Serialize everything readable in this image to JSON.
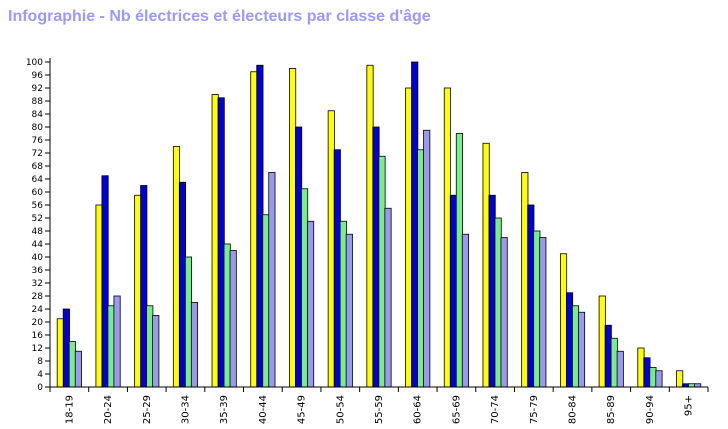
{
  "title": "Infographie - Nb électrices et électeurs par classe d'âge",
  "colors": {
    "background": "#ffffff",
    "title": "#9999ff",
    "axis": "#000000",
    "series": [
      "#ffff00",
      "#0000dd",
      "#77ee88",
      "#9999ee"
    ]
  },
  "chart_data": {
    "type": "bar",
    "title": "Infographie - Nb électrices et électeurs par classe d'âge",
    "xlabel": "",
    "ylabel": "",
    "ylim": [
      0,
      100
    ],
    "y_ticks": [
      0,
      4,
      8,
      12,
      16,
      20,
      24,
      28,
      32,
      36,
      40,
      44,
      48,
      52,
      56,
      60,
      64,
      68,
      72,
      76,
      80,
      84,
      88,
      92,
      96,
      100
    ],
    "grid": false,
    "legend": "none",
    "categories": [
      "18-19",
      "20-24",
      "25-29",
      "30-34",
      "35-39",
      "40-44",
      "45-49",
      "50-54",
      "55-59",
      "60-64",
      "65-69",
      "70-74",
      "75-79",
      "80-84",
      "85-89",
      "90-94",
      "95+"
    ],
    "series": [
      {
        "values": [
          21,
          56,
          59,
          74,
          90,
          97,
          98,
          85,
          99,
          92,
          92,
          75,
          66,
          41,
          28,
          12,
          5
        ]
      },
      {
        "values": [
          24,
          65,
          62,
          63,
          89,
          99,
          80,
          73,
          80,
          100,
          59,
          59,
          56,
          29,
          19,
          9,
          1
        ]
      },
      {
        "values": [
          14,
          25,
          25,
          40,
          44,
          53,
          61,
          51,
          71,
          73,
          78,
          52,
          48,
          25,
          15,
          6,
          1
        ]
      },
      {
        "values": [
          11,
          28,
          22,
          26,
          42,
          66,
          51,
          47,
          55,
          79,
          47,
          46,
          46,
          23,
          11,
          5,
          1
        ]
      }
    ]
  }
}
